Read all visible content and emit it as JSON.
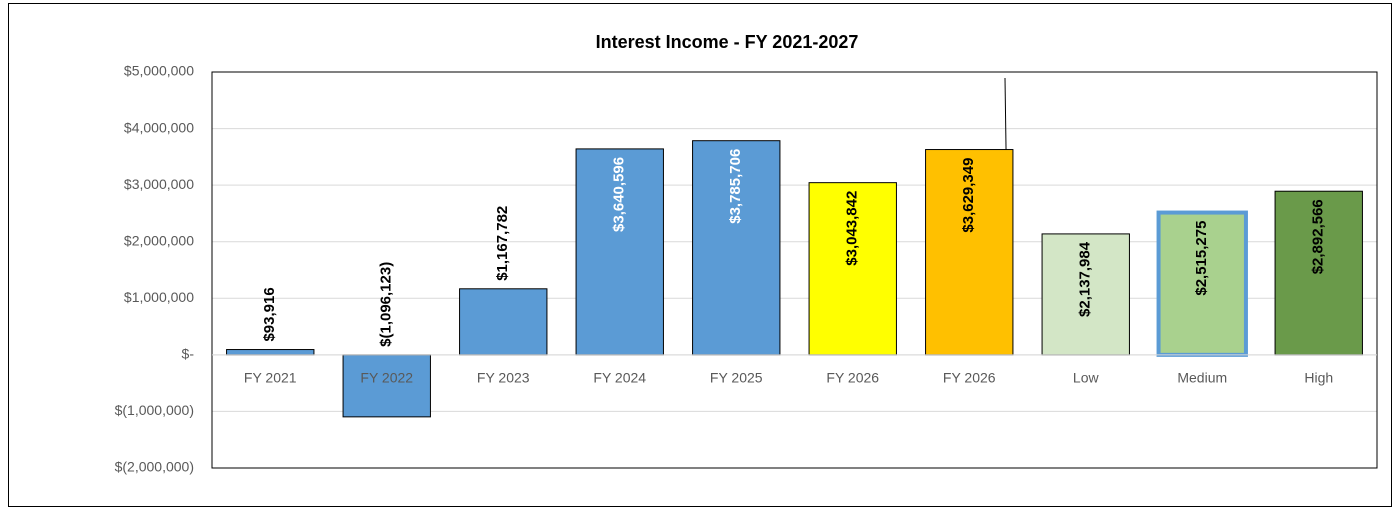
{
  "chart_data": {
    "type": "bar",
    "title": "Interest Income - FY 2021-2027",
    "categories": [
      "FY 2021",
      "FY 2022",
      "FY 2023",
      "FY 2024",
      "FY 2025",
      "FY 2026",
      "FY 2026",
      "Low",
      "Medium",
      "High"
    ],
    "values": [
      93916,
      -1096123,
      1167782,
      3640596,
      3785706,
      3043842,
      3629349,
      2137984,
      2515275,
      2892566
    ],
    "value_labels": [
      "$93,916",
      "$(1,096,123)",
      "$1,167,782",
      "$3,640,596",
      "$3,785,706",
      "$3,043,842",
      "$3,629,349",
      "$2,137,984",
      "$2,515,275",
      "$2,892,566"
    ],
    "colors": [
      "#5b9bd5",
      "#5b9bd5",
      "#5b9bd5",
      "#5b9bd5",
      "#5b9bd5",
      "#ffff00",
      "#ffc000",
      "#d3e6c6",
      "#a9d18e",
      "#6a9a4a"
    ],
    "label_colors": [
      "#000000",
      "#000000",
      "#000000",
      "#ffffff",
      "#ffffff",
      "#000000",
      "#000000",
      "#000000",
      "#000000",
      "#000000"
    ],
    "ylim": [
      -2000000,
      5000000
    ],
    "yticks": [
      {
        "value": -2000000,
        "label": "$(2,000,000)"
      },
      {
        "value": -1000000,
        "label": "$(1,000,000)"
      },
      {
        "value": 0,
        "label": "$-"
      },
      {
        "value": 1000000,
        "label": "$1,000,000"
      },
      {
        "value": 2000000,
        "label": "$2,000,000"
      },
      {
        "value": 3000000,
        "label": "$3,000,000"
      },
      {
        "value": 4000000,
        "label": "$4,000,000"
      },
      {
        "value": 5000000,
        "label": "$5,000,000"
      }
    ],
    "grid": true
  }
}
